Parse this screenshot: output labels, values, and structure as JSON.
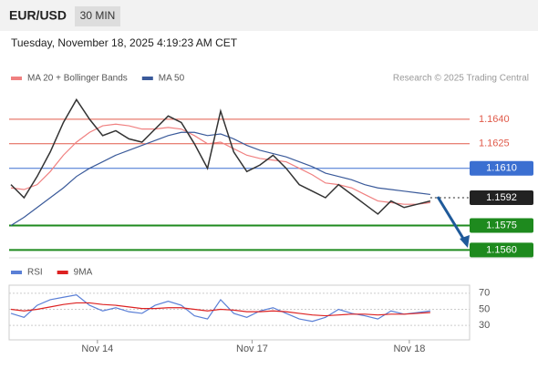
{
  "header": {
    "symbol": "EUR/USD",
    "timeframe": "30 MIN",
    "timestamp": "Tuesday, November 18, 2025 4:19:23 AM CET",
    "credit": "Research © 2025 Trading Central"
  },
  "chart_data": [
    {
      "type": "line",
      "x": [
        0,
        1,
        2,
        3,
        4,
        5,
        6,
        7,
        8,
        9,
        10,
        11,
        12,
        13,
        14,
        15,
        16,
        17,
        18,
        19,
        20,
        21,
        22,
        23,
        24,
        25,
        26,
        27,
        28,
        29,
        30,
        31,
        32
      ],
      "xlim": [
        0,
        35
      ],
      "ylim": [
        1.1558,
        1.166
      ],
      "series": [
        {
          "name": "MA 20 + Bollinger Bands",
          "color": "#f08080",
          "values": [
            1.1598,
            1.1597,
            1.16,
            1.1608,
            1.1618,
            1.1626,
            1.1632,
            1.1636,
            1.1637,
            1.1636,
            1.1634,
            1.1634,
            1.1635,
            1.1634,
            1.163,
            1.1625,
            1.1626,
            1.1622,
            1.1618,
            1.1616,
            1.1615,
            1.1614,
            1.161,
            1.1606,
            1.1601,
            1.16,
            1.1598,
            1.1594,
            1.159,
            1.1589,
            1.1588,
            1.1588,
            1.1589
          ]
        },
        {
          "name": "MA 50",
          "color": "#3a5a9a",
          "values": [
            1.1575,
            1.158,
            1.1586,
            1.1592,
            1.1598,
            1.1605,
            1.161,
            1.1614,
            1.1618,
            1.1621,
            1.1624,
            1.1627,
            1.163,
            1.1632,
            1.1632,
            1.163,
            1.1631,
            1.1628,
            1.1624,
            1.1621,
            1.1619,
            1.1617,
            1.1614,
            1.1611,
            1.1607,
            1.1605,
            1.1603,
            1.16,
            1.1598,
            1.1597,
            1.1596,
            1.1595,
            1.1594
          ]
        }
      ],
      "price": {
        "color": "#333333",
        "values": [
          1.16,
          1.1592,
          1.1605,
          1.162,
          1.1638,
          1.1652,
          1.164,
          1.163,
          1.1633,
          1.1628,
          1.1626,
          1.1634,
          1.1642,
          1.1638,
          1.1625,
          1.161,
          1.1645,
          1.162,
          1.1608,
          1.1612,
          1.1618,
          1.161,
          1.16,
          1.1596,
          1.1592,
          1.16,
          1.1594,
          1.1588,
          1.1582,
          1.159,
          1.1586,
          1.1588,
          1.159
        ]
      },
      "levels": [
        {
          "value": 1.164,
          "label": "1.1640",
          "color": "#e05a4a",
          "boxed": false
        },
        {
          "value": 1.1625,
          "label": "1.1625",
          "color": "#e05a4a",
          "boxed": false
        },
        {
          "value": 1.161,
          "label": "1.1610",
          "color": "#3b6fd1",
          "boxed": true
        },
        {
          "value": 1.1592,
          "label": "1.1592",
          "color": "#222222",
          "boxed": true
        },
        {
          "value": 1.1575,
          "label": "1.1575",
          "color": "#1e8a1e",
          "boxed": true
        },
        {
          "value": 1.156,
          "label": "1.1560",
          "color": "#1e8a1e",
          "boxed": true
        }
      ]
    },
    {
      "type": "line",
      "x": [
        0,
        1,
        2,
        3,
        4,
        5,
        6,
        7,
        8,
        9,
        10,
        11,
        12,
        13,
        14,
        15,
        16,
        17,
        18,
        19,
        20,
        21,
        22,
        23,
        24,
        25,
        26,
        27,
        28,
        29,
        30,
        31,
        32
      ],
      "xlim": [
        0,
        35
      ],
      "ylim": [
        20,
        80
      ],
      "yticks": [
        70,
        50,
        30
      ],
      "xticks": [
        {
          "value": 6.6,
          "label": "Nov 14"
        },
        {
          "value": 18.4,
          "label": "Nov 17"
        },
        {
          "value": 30.4,
          "label": "Nov 18"
        }
      ],
      "series": [
        {
          "name": "RSI",
          "color": "#5a7fd6",
          "values": [
            45,
            40,
            55,
            62,
            65,
            68,
            55,
            48,
            52,
            47,
            45,
            55,
            60,
            55,
            42,
            38,
            62,
            45,
            40,
            48,
            52,
            45,
            38,
            35,
            40,
            50,
            45,
            42,
            38,
            48,
            44,
            46,
            48
          ]
        },
        {
          "name": "9MA",
          "color": "#dd2222",
          "values": [
            50,
            48,
            50,
            53,
            56,
            58,
            58,
            56,
            55,
            53,
            51,
            51,
            52,
            52,
            50,
            48,
            50,
            49,
            47,
            47,
            48,
            47,
            45,
            43,
            42,
            43,
            44,
            44,
            43,
            44,
            44,
            45,
            46
          ]
        }
      ]
    }
  ]
}
